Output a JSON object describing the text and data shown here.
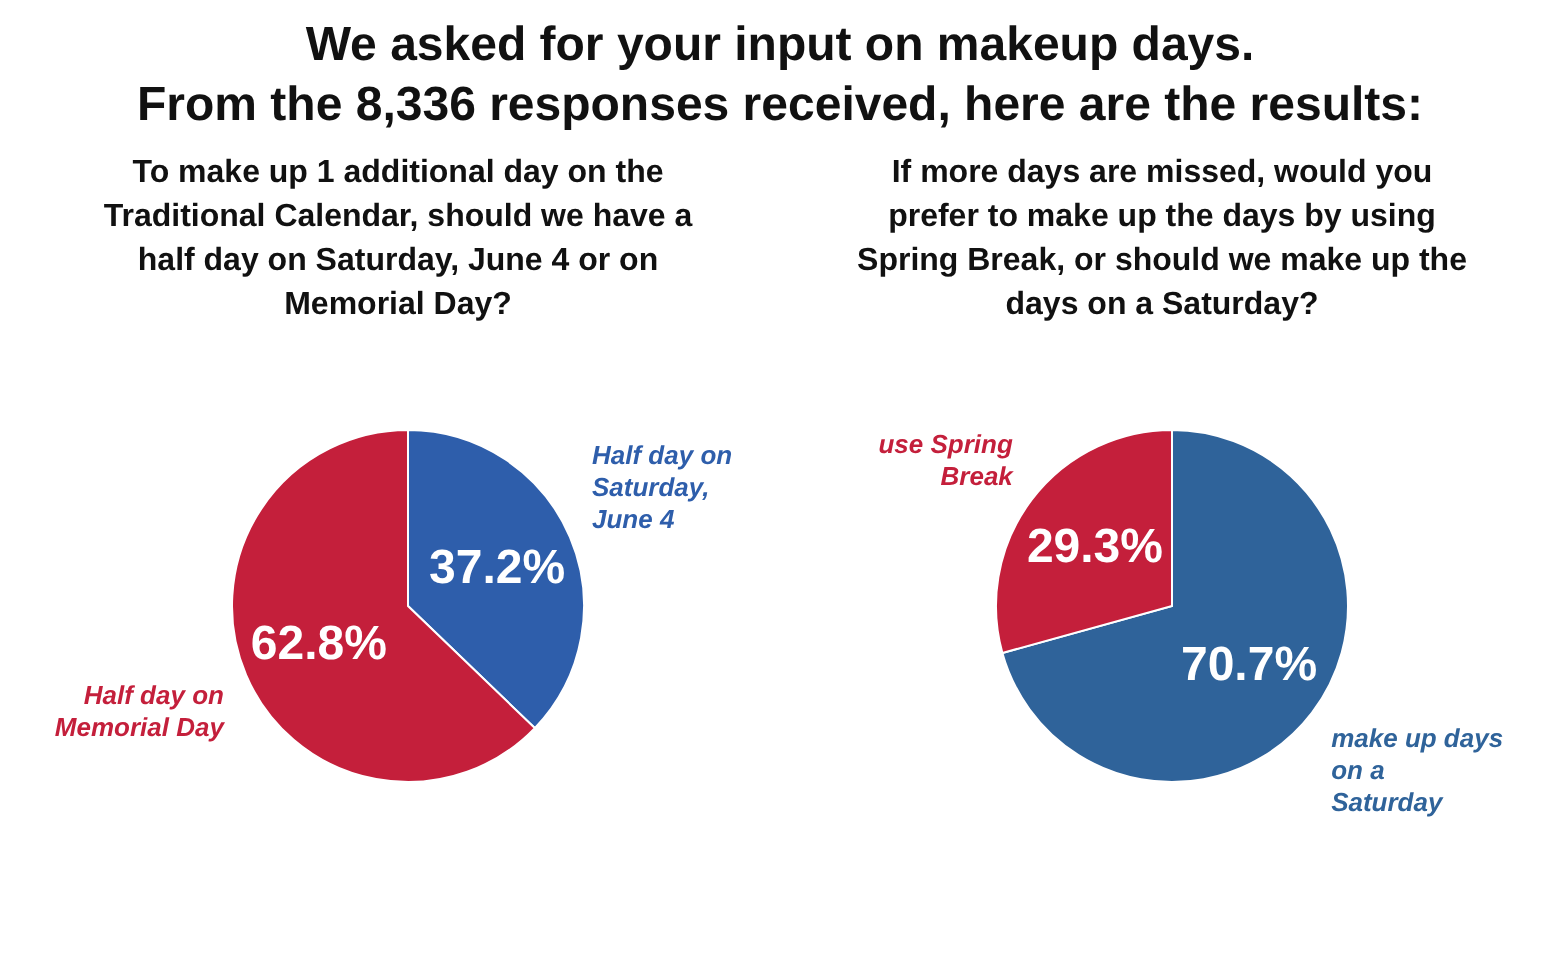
{
  "chart_data": [
    {
      "type": "other",
      "title": "We asked for your input on makeup days.",
      "subtitle": "From the 8,336 responses received, here are the results:"
    },
    {
      "type": "pie",
      "title": "To make up 1 additional day on the Traditional Calendar, should we have a half day on Saturday, June 4 or on Memorial Day?",
      "categories": [
        "Half day on Saturday, June 4",
        "Half day on Memorial Day"
      ],
      "values": [
        37.2,
        62.8
      ],
      "colors": [
        "#2e5eab",
        "#c41f3b"
      ],
      "value_labels": [
        "37.2%",
        "62.8%"
      ],
      "legend": false
    },
    {
      "type": "pie",
      "title": "If more days are missed, would you prefer to make up the days by using Spring Break, or should we make up the days on a Saturday?",
      "categories": [
        "make up days on a Saturday",
        "use Spring Break"
      ],
      "values": [
        70.7,
        29.3
      ],
      "colors": [
        "#2f639a",
        "#c41f3b"
      ],
      "value_labels": [
        "70.7%",
        "29.3%"
      ],
      "legend": false
    }
  ]
}
